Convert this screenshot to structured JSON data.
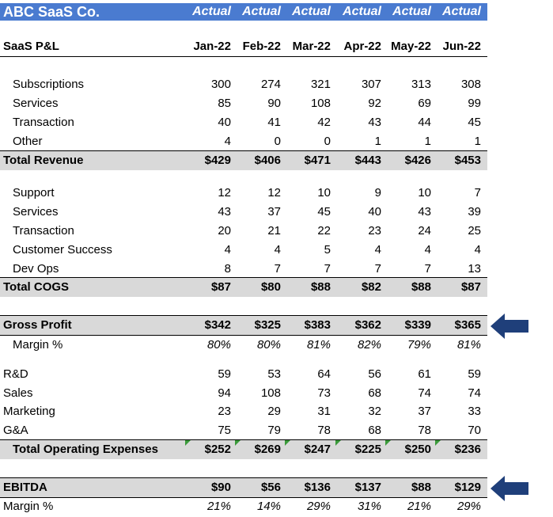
{
  "company": "ABC SaaS Co.",
  "column_status": [
    "Actual",
    "Actual",
    "Actual",
    "Actual",
    "Actual",
    "Actual"
  ],
  "section_title": "SaaS P&L",
  "months": [
    "Jan-22",
    "Feb-22",
    "Mar-22",
    "Apr-22",
    "May-22",
    "Jun-22"
  ],
  "revenue": {
    "lines": [
      {
        "label": "Subscriptions",
        "values": [
          "300",
          "274",
          "321",
          "307",
          "313",
          "308"
        ]
      },
      {
        "label": "Services",
        "values": [
          "85",
          "90",
          "108",
          "92",
          "69",
          "99"
        ]
      },
      {
        "label": "Transaction",
        "values": [
          "40",
          "41",
          "42",
          "43",
          "44",
          "45"
        ]
      },
      {
        "label": "Other",
        "values": [
          "4",
          "0",
          "0",
          "1",
          "1",
          "1"
        ]
      }
    ],
    "total": {
      "label": "Total Revenue",
      "values": [
        "$429",
        "$406",
        "$471",
        "$443",
        "$426",
        "$453"
      ]
    }
  },
  "cogs": {
    "lines": [
      {
        "label": "Support",
        "values": [
          "12",
          "12",
          "10",
          "9",
          "10",
          "7"
        ]
      },
      {
        "label": "Services",
        "values": [
          "43",
          "37",
          "45",
          "40",
          "43",
          "39"
        ]
      },
      {
        "label": "Transaction",
        "values": [
          "20",
          "21",
          "22",
          "23",
          "24",
          "25"
        ]
      },
      {
        "label": "Customer Success",
        "values": [
          "4",
          "4",
          "5",
          "4",
          "4",
          "4"
        ]
      },
      {
        "label": "Dev Ops",
        "values": [
          "8",
          "7",
          "7",
          "7",
          "7",
          "13"
        ]
      }
    ],
    "total": {
      "label": "Total COGS",
      "values": [
        "$87",
        "$80",
        "$88",
        "$82",
        "$88",
        "$87"
      ]
    }
  },
  "gross_profit": {
    "label": "Gross Profit",
    "values": [
      "$342",
      "$325",
      "$383",
      "$362",
      "$339",
      "$365"
    ],
    "margin_label": "Margin %",
    "margin": [
      "80%",
      "80%",
      "81%",
      "82%",
      "79%",
      "81%"
    ]
  },
  "opex": {
    "lines": [
      {
        "label": "R&D",
        "values": [
          "59",
          "53",
          "64",
          "56",
          "61",
          "59"
        ]
      },
      {
        "label": "Sales",
        "values": [
          "94",
          "108",
          "73",
          "68",
          "74",
          "74"
        ]
      },
      {
        "label": "Marketing",
        "values": [
          "23",
          "29",
          "31",
          "32",
          "37",
          "33"
        ]
      },
      {
        "label": "G&A",
        "values": [
          "75",
          "79",
          "78",
          "68",
          "78",
          "70"
        ]
      }
    ],
    "total": {
      "label": "Total Operating Expenses",
      "values": [
        "$252",
        "$269",
        "$247",
        "$225",
        "$250",
        "$236"
      ]
    }
  },
  "ebitda": {
    "label": "EBITDA",
    "values": [
      "$90",
      "$56",
      "$136",
      "$137",
      "$88",
      "$129"
    ],
    "margin_label": "Margin %",
    "margin": [
      "21%",
      "14%",
      "29%",
      "31%",
      "21%",
      "29%"
    ]
  },
  "colors": {
    "header_bg": "#4a7bd0",
    "total_bg": "#d9d9d9",
    "arrow": "#1f3f7a",
    "tick": "#3a9a3a"
  },
  "icons": {
    "highlight_arrow": "left-arrow-icon"
  }
}
